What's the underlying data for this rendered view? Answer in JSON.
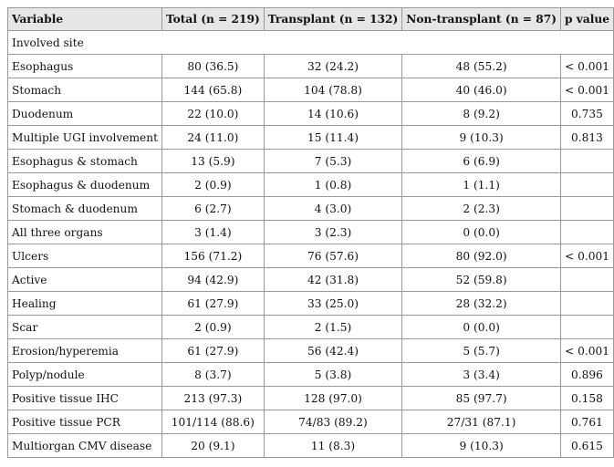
{
  "headers": [
    "Variable",
    "Total (n = 219)",
    "Transplant (n = 132)",
    "Non-transplant (n = 87)",
    "p value"
  ],
  "section_label": "Involved site",
  "rows": [
    [
      "Esophagus",
      "80 (36.5)",
      "32 (24.2)",
      "48 (55.2)",
      "< 0.001"
    ],
    [
      "Stomach",
      "144 (65.8)",
      "104 (78.8)",
      "40 (46.0)",
      "< 0.001"
    ],
    [
      "Duodenum",
      "22 (10.0)",
      "14 (10.6)",
      "8 (9.2)",
      "0.735"
    ],
    [
      "Multiple UGI involvement",
      "24 (11.0)",
      "15 (11.4)",
      "9 (10.3)",
      "0.813"
    ],
    [
      "Esophagus & stomach",
      "13 (5.9)",
      "7 (5.3)",
      "6 (6.9)",
      ""
    ],
    [
      "Esophagus & duodenum",
      "2 (0.9)",
      "1 (0.8)",
      "1 (1.1)",
      ""
    ],
    [
      "Stomach & duodenum",
      "6 (2.7)",
      "4 (3.0)",
      "2 (2.3)",
      ""
    ],
    [
      "All three organs",
      "3 (1.4)",
      "3 (2.3)",
      "0 (0.0)",
      ""
    ],
    [
      "Ulcers",
      "156 (71.2)",
      "76 (57.6)",
      "80 (92.0)",
      "< 0.001"
    ],
    [
      "Active",
      "94 (42.9)",
      "42 (31.8)",
      "52 (59.8)",
      ""
    ],
    [
      "Healing",
      "61 (27.9)",
      "33 (25.0)",
      "28 (32.2)",
      ""
    ],
    [
      "Scar",
      "2 (0.9)",
      "2 (1.5)",
      "0 (0.0)",
      ""
    ],
    [
      "Erosion/hyperemia",
      "61 (27.9)",
      "56 (42.4)",
      "5 (5.7)",
      "< 0.001"
    ],
    [
      "Polyp/nodule",
      "8 (3.7)",
      "5 (3.8)",
      "3 (3.4)",
      "0.896"
    ],
    [
      "Positive tissue IHC",
      "213 (97.3)",
      "128 (97.0)",
      "85 (97.7)",
      "0.158"
    ],
    [
      "Positive tissue PCR",
      "101/114 (88.6)",
      "74/83 (89.2)",
      "27/31 (87.1)",
      "0.761"
    ],
    [
      "Multiorgan CMV disease",
      "20 (9.1)",
      "11 (8.3)",
      "9 (10.3)",
      "0.615"
    ]
  ]
}
